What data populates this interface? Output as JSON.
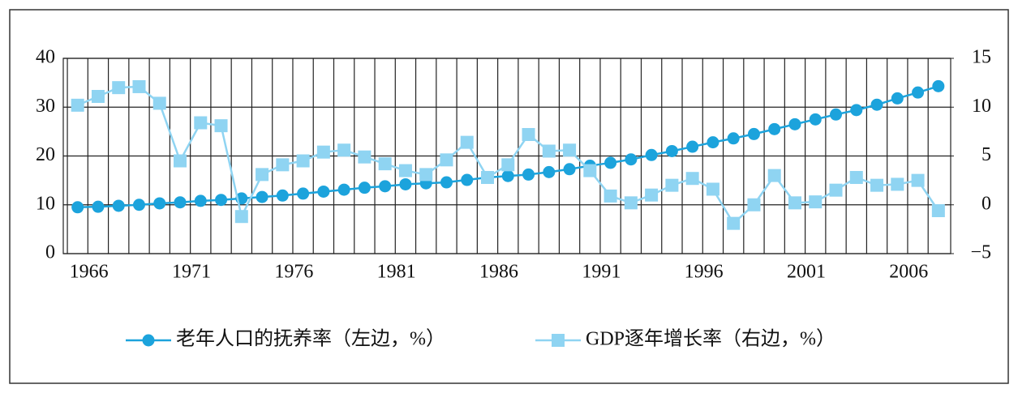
{
  "chart_data": {
    "type": "line",
    "x": [
      1966,
      1967,
      1968,
      1969,
      1970,
      1971,
      1972,
      1973,
      1974,
      1975,
      1976,
      1977,
      1978,
      1979,
      1980,
      1981,
      1982,
      1983,
      1984,
      1985,
      1986,
      1987,
      1988,
      1989,
      1990,
      1991,
      1992,
      1993,
      1994,
      1995,
      1996,
      1997,
      1998,
      1999,
      2000,
      2001,
      2002,
      2003,
      2004,
      2005,
      2006,
      2007,
      2008
    ],
    "xlim": [
      1965.3,
      2008.6
    ],
    "xticks": [
      1966,
      1971,
      1976,
      1981,
      1986,
      1991,
      1996,
      2001,
      2006
    ],
    "ylim": [
      0,
      40
    ],
    "yticks": [
      0,
      10,
      20,
      30,
      40
    ],
    "y2lim": [
      -5,
      15
    ],
    "y2ticks": [
      {
        "value": -5,
        "label": "−5"
      },
      0,
      5,
      10,
      15
    ],
    "grid": true,
    "legend": "bottom",
    "series": [
      {
        "name": "老年人口的抚养率（左边，%）",
        "color": "#1ca3dc",
        "marker": "circle",
        "values": [
          9.5,
          9.6,
          9.8,
          10.0,
          10.3,
          10.5,
          10.8,
          11.0,
          11.3,
          11.6,
          11.9,
          12.3,
          12.7,
          13.1,
          13.5,
          13.8,
          14.2,
          14.4,
          14.6,
          15.1,
          15.6,
          15.9,
          16.2,
          16.7,
          17.3,
          18.0,
          18.6,
          19.3,
          20.2,
          21.0,
          21.9,
          22.8,
          23.6,
          24.5,
          25.5,
          26.5,
          27.5,
          28.5,
          29.4,
          30.5,
          31.8,
          33.0,
          34.3
        ]
      },
      {
        "name": "GDP逐年增长率（右边，%）",
        "color": "#8fd4f2",
        "marker": "square",
        "axis": "y2",
        "values": [
          10.2,
          11.1,
          12.0,
          12.1,
          10.4,
          4.5,
          8.4,
          8.1,
          -1.2,
          3.1,
          4.1,
          4.5,
          5.4,
          5.6,
          4.9,
          4.2,
          3.5,
          3.1,
          4.6,
          6.4,
          2.8,
          4.1,
          7.2,
          5.5,
          5.6,
          3.5,
          0.9,
          0.2,
          1.0,
          2.0,
          2.7,
          1.6,
          -1.9,
          0.0,
          3.0,
          0.2,
          0.3,
          1.5,
          2.8,
          2.0,
          2.1,
          2.5,
          -0.6
        ]
      }
    ]
  }
}
